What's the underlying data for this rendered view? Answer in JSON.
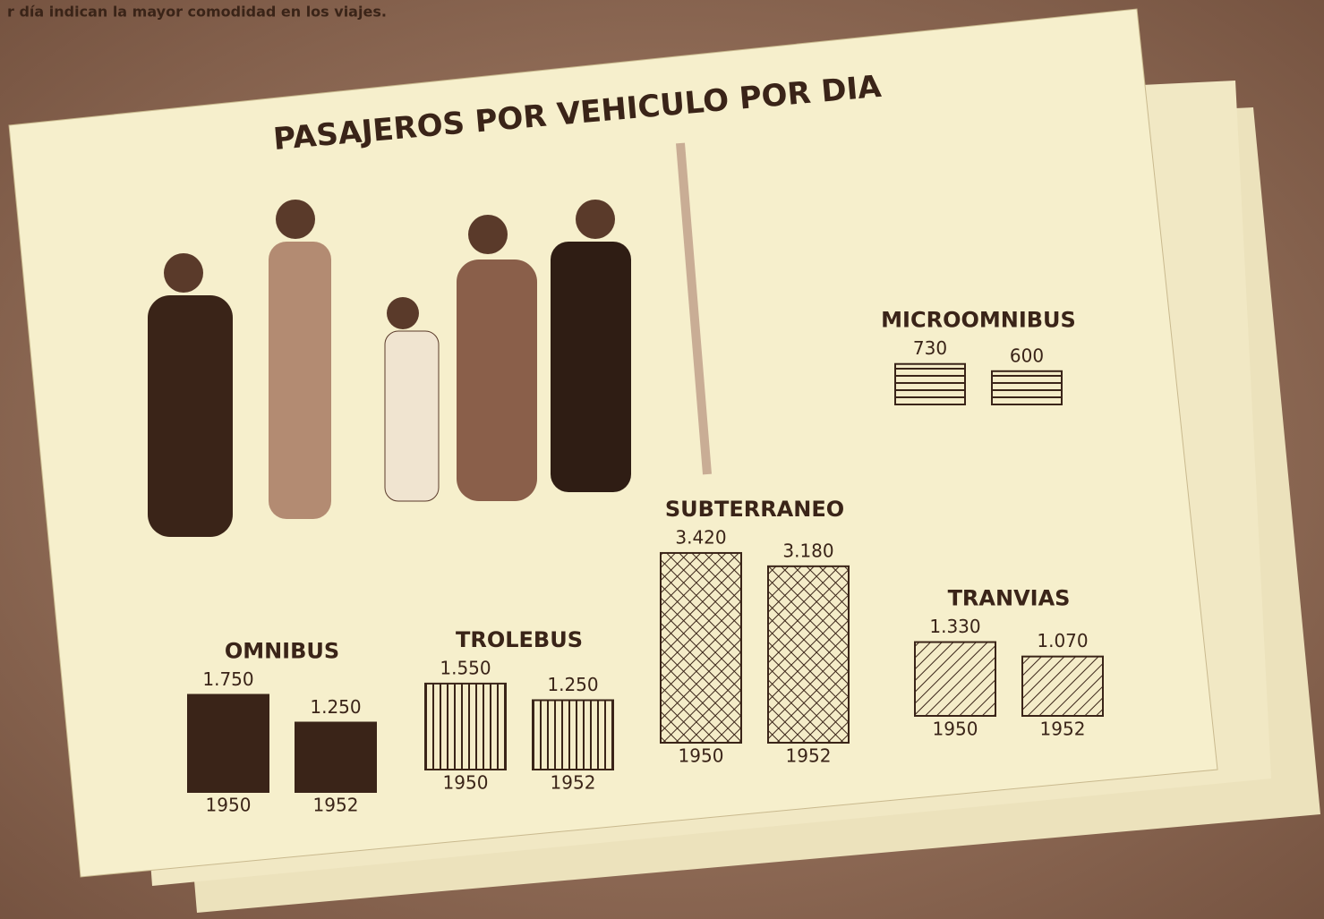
{
  "caption": "r día indican la mayor comodidad en los viajes.",
  "chart_data": {
    "type": "bar",
    "title": "PASAJEROS POR VEHICULO POR DIA",
    "categories": [
      "OMNIBUS",
      "TROLEBUS",
      "SUBTERRANEO",
      "TRANVIAS",
      "MICROOMNIBUS"
    ],
    "series": [
      {
        "name": "1950",
        "values": [
          1750,
          1550,
          3420,
          1330,
          730
        ],
        "value_labels": [
          "1.750",
          "1.550",
          "3.420",
          "1.330",
          "730"
        ]
      },
      {
        "name": "1952",
        "values": [
          1250,
          1250,
          3180,
          1070,
          600
        ],
        "value_labels": [
          "1.250",
          "1.250",
          "3.180",
          "1.070",
          "600"
        ]
      }
    ],
    "color": "#3a2418",
    "fills": [
      "solid",
      "vertical",
      "crosshatch",
      "diagonal",
      "horizontal"
    ]
  }
}
